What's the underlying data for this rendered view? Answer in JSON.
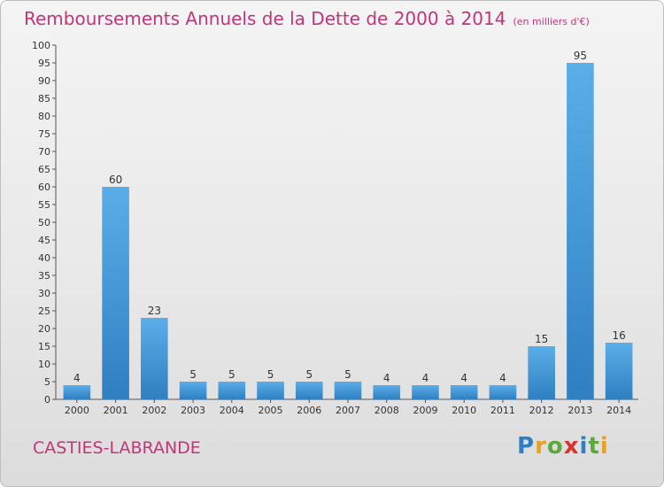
{
  "header": {
    "title": "Remboursements Annuels de la Dette de 2000 à 2014",
    "subtitle": "(en milliers d'€)"
  },
  "footer": {
    "place": "CASTIES-LABRANDE",
    "logo_text": "Proxiti"
  },
  "colors": {
    "title": "#c2357a",
    "bar_top": "#5aaee8",
    "bar_bottom": "#2f7fc1",
    "logo": [
      "#2f7fc1",
      "#e6a12a",
      "#5aaa3c",
      "#d9342b",
      "#2f7fc1",
      "#5aaa3c",
      "#e6a12a"
    ]
  },
  "chart_data": {
    "type": "bar",
    "categories": [
      "2000",
      "2001",
      "2002",
      "2003",
      "2004",
      "2005",
      "2006",
      "2007",
      "2008",
      "2009",
      "2010",
      "2011",
      "2012",
      "2013",
      "2014"
    ],
    "values": [
      4,
      60,
      23,
      5,
      5,
      5,
      5,
      5,
      4,
      4,
      4,
      4,
      15,
      95,
      16
    ],
    "ylim": [
      0,
      100
    ],
    "ytick_step": 5,
    "grid": false,
    "data_labels": true
  }
}
